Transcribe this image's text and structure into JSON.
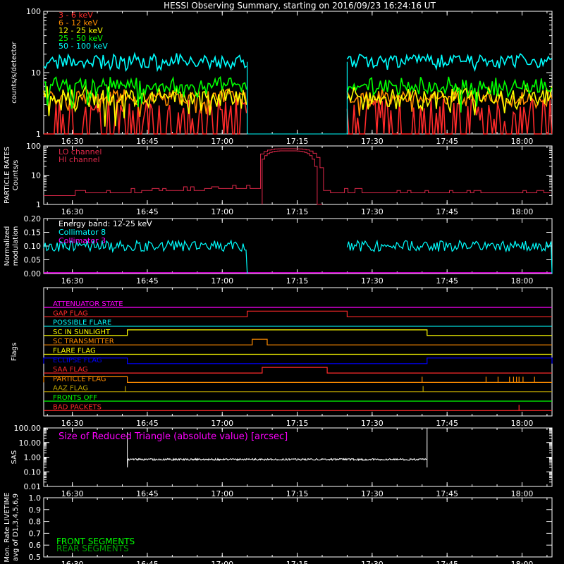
{
  "title": "HESSI Observing Summary, starting on 2016/09/23 16:24:16 UT",
  "time_ticks": [
    "16:30",
    "16:45",
    "17:00",
    "17:15",
    "17:30",
    "17:45",
    "18:00"
  ],
  "colors": {
    "bg": "#000000",
    "axis": "#ffffff",
    "red": "#ff2a2a",
    "orange": "#ff8c00",
    "yellow": "#ffff00",
    "green": "#00ff00",
    "cyan": "#00ffff",
    "magenta": "#ff00ff",
    "crimson": "#e0284a",
    "blue": "#0000ff",
    "darkyellow": "#b8a000",
    "darkgreen": "#00a000"
  },
  "chart_data": [
    {
      "panel": "count-rates",
      "type": "line",
      "ylabel": "counts/s/detector",
      "yscale": "log",
      "ylim": [
        1,
        100
      ],
      "ytick_labels": [
        "1",
        "10",
        "100"
      ],
      "data_gap": [
        "17:05",
        "17:25"
      ],
      "series": [
        {
          "name": "3 - 6 keV",
          "color": "red",
          "level": [
            1,
            2.5
          ]
        },
        {
          "name": "6 - 12 keV",
          "color": "orange",
          "level": [
            3.5,
            4.5
          ]
        },
        {
          "name": "12 - 25 keV",
          "color": "yellow",
          "level": [
            3,
            5
          ]
        },
        {
          "name": "25 - 50 keV",
          "color": "green",
          "level": [
            5,
            7
          ]
        },
        {
          "name": "50 - 100 keV",
          "color": "cyan",
          "level": [
            14,
            17
          ]
        }
      ]
    },
    {
      "panel": "particle-rates",
      "type": "line",
      "ylabel_lines": [
        "PARTICLE RATES",
        "Counts/s"
      ],
      "yscale": "log",
      "ylim": [
        1,
        100
      ],
      "ytick_labels": [
        "1",
        "10",
        "100"
      ],
      "peak": {
        "start": "17:08",
        "max_time": "17:13",
        "end": "17:20",
        "max_value": 80
      },
      "series": [
        {
          "name": "LO channel",
          "color": "crimson",
          "baseline": [
            2,
            3,
            4
          ]
        },
        {
          "name": "HI channel",
          "color": "crimson"
        }
      ]
    },
    {
      "panel": "modulation",
      "type": "line",
      "ylabel_lines": [
        "Normalized",
        "modulation"
      ],
      "ylim": [
        0,
        0.2
      ],
      "ytick_labels": [
        "0.00",
        "0.05",
        "0.10",
        "0.15",
        "0.20"
      ],
      "energy_band_label": "Energy band: 12-25 keV",
      "data_gap": [
        "17:05",
        "17:25"
      ],
      "series": [
        {
          "name": "Collimator 8",
          "color": "cyan",
          "level": 0.1
        },
        {
          "name": "Collimator 3",
          "color": "magenta",
          "level": 0.0
        }
      ]
    },
    {
      "panel": "flags",
      "type": "line",
      "ylabel": "Flags",
      "flags": [
        {
          "name": "ATTENUATOR STATE",
          "color": "magenta",
          "high_intervals": []
        },
        {
          "name": "GAP FLAG",
          "color": "red",
          "high_intervals": [
            [
              "17:05",
              "17:25"
            ]
          ]
        },
        {
          "name": "POSSIBLE FLARE",
          "color": "cyan",
          "high_intervals": []
        },
        {
          "name": "SC IN SUNLIGHT",
          "color": "yellow",
          "high_intervals": [
            [
              "16:41",
              "17:41"
            ]
          ]
        },
        {
          "name": "SC TRANSMITTER",
          "color": "orange",
          "high_intervals": [
            [
              "17:06",
              "17:09"
            ]
          ]
        },
        {
          "name": "FLARE FLAG",
          "color": "yellow",
          "high_intervals": []
        },
        {
          "name": "ECLIPSE FLAG",
          "color": "blue",
          "high_intervals": [
            [
              "16:24",
              "16:41"
            ],
            [
              "17:41",
              "18:06"
            ]
          ]
        },
        {
          "name": "SAA FLAG",
          "color": "red",
          "high_intervals": [
            [
              "17:08",
              "17:21"
            ]
          ]
        },
        {
          "name": "PARTICLE FLAG",
          "color": "orange",
          "high_intervals": [
            [
              "16:24",
              "16:41"
            ]
          ]
        },
        {
          "name": "AAZ FLAG",
          "color": "darkyellow",
          "high_intervals": []
        },
        {
          "name": "FRONTS OFF",
          "color": "green",
          "high_intervals": []
        },
        {
          "name": "BAD PACKETS",
          "color": "red",
          "high_intervals": []
        }
      ]
    },
    {
      "panel": "sas",
      "type": "line",
      "ylabel": "SAS",
      "yscale": "log",
      "ylim": [
        0.01,
        100
      ],
      "ytick_labels": [
        "0.01",
        "0.10",
        "1.00",
        "10.00",
        "100.00"
      ],
      "annotation": "Size of Reduced Triangle (absolute value) [arcsec]",
      "series": [
        {
          "name": "triangle size",
          "color": "axis",
          "level": 0.7,
          "start": "16:41",
          "end": "17:41"
        }
      ]
    },
    {
      "panel": "livetime",
      "type": "line",
      "ylabel_lines": [
        "Mon. Rate LIVETIME",
        "avg of D1,3,4,5,6,9"
      ],
      "ylim": [
        0.5,
        1.0
      ],
      "ytick_labels": [
        "0.5",
        "0.6",
        "0.7",
        "0.8",
        "0.9",
        "1.0"
      ],
      "series": [
        {
          "name": "FRONT SEGMENTS",
          "color": "green"
        },
        {
          "name": "REAR SEGMENTS",
          "color": "darkgreen"
        }
      ]
    }
  ]
}
